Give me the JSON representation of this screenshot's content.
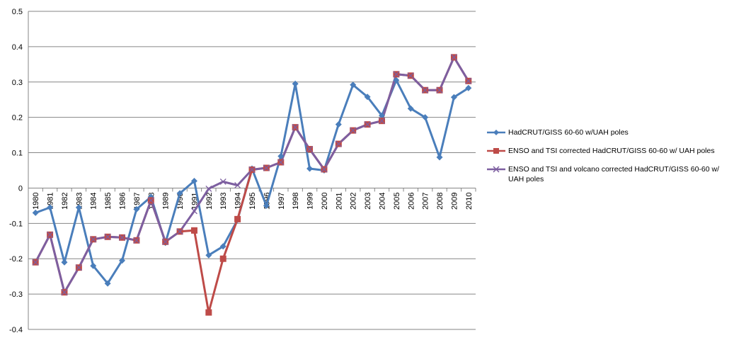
{
  "chart_data": {
    "type": "line",
    "title": "",
    "xlabel": "",
    "ylabel": "",
    "ylim": [
      -0.4,
      0.5
    ],
    "yticks": [
      "0.5",
      "0.4",
      "0.3",
      "0.2",
      "0.1",
      "0",
      "-0.1",
      "-0.2",
      "-0.3",
      "-0.4"
    ],
    "grid": "horizontal",
    "legend_position": "right",
    "categories": [
      "1980",
      "1981",
      "1982",
      "1983",
      "1984",
      "1985",
      "1986",
      "1987",
      "1988",
      "1989",
      "1990",
      "1991",
      "1992",
      "1993",
      "1994",
      "1995",
      "1996",
      "1997",
      "1998",
      "1999",
      "2000",
      "2001",
      "2002",
      "2003",
      "2004",
      "2005",
      "2006",
      "2007",
      "2008",
      "2009",
      "2010"
    ],
    "series": [
      {
        "name": "HadCRUT/GISS  60-60 w/UAH  poles",
        "color": "#4a7ebb",
        "marker": "diamond",
        "values": [
          -0.07,
          -0.055,
          -0.21,
          -0.055,
          -0.22,
          -0.27,
          -0.205,
          -0.06,
          -0.025,
          -0.155,
          -0.015,
          0.02,
          -0.19,
          -0.165,
          -0.09,
          0.055,
          -0.05,
          0.09,
          0.295,
          0.055,
          0.05,
          0.18,
          0.292,
          0.258,
          0.205,
          0.305,
          0.225,
          0.2,
          0.087,
          0.257,
          0.283
        ]
      },
      {
        "name": "ENSO and TSI corrected HadCRUT/GISS  60-60 w/ UAH poles",
        "color": "#be4b48",
        "marker": "square",
        "values": [
          -0.21,
          -0.132,
          -0.295,
          -0.225,
          -0.145,
          -0.138,
          -0.14,
          -0.148,
          -0.035,
          -0.152,
          -0.123,
          -0.12,
          -0.352,
          -0.2,
          -0.088,
          0.052,
          0.057,
          0.073,
          0.172,
          0.11,
          0.053,
          0.125,
          0.163,
          0.18,
          0.19,
          0.322,
          0.318,
          0.277,
          0.277,
          0.37,
          0.303
        ]
      },
      {
        "name": "ENSO and TSI and volcano corrected HadCRUT/GISS  60-60 w/ UAH poles",
        "color": "#7d5fa0",
        "marker": "x",
        "values": [
          -0.21,
          -0.132,
          -0.295,
          -0.225,
          -0.145,
          -0.138,
          -0.14,
          -0.148,
          -0.035,
          -0.152,
          -0.123,
          -0.065,
          -0.002,
          0.018,
          0.008,
          0.052,
          0.057,
          0.073,
          0.172,
          0.11,
          0.053,
          0.125,
          0.163,
          0.18,
          0.19,
          0.322,
          0.318,
          0.277,
          0.277,
          0.37,
          0.303
        ]
      }
    ]
  }
}
